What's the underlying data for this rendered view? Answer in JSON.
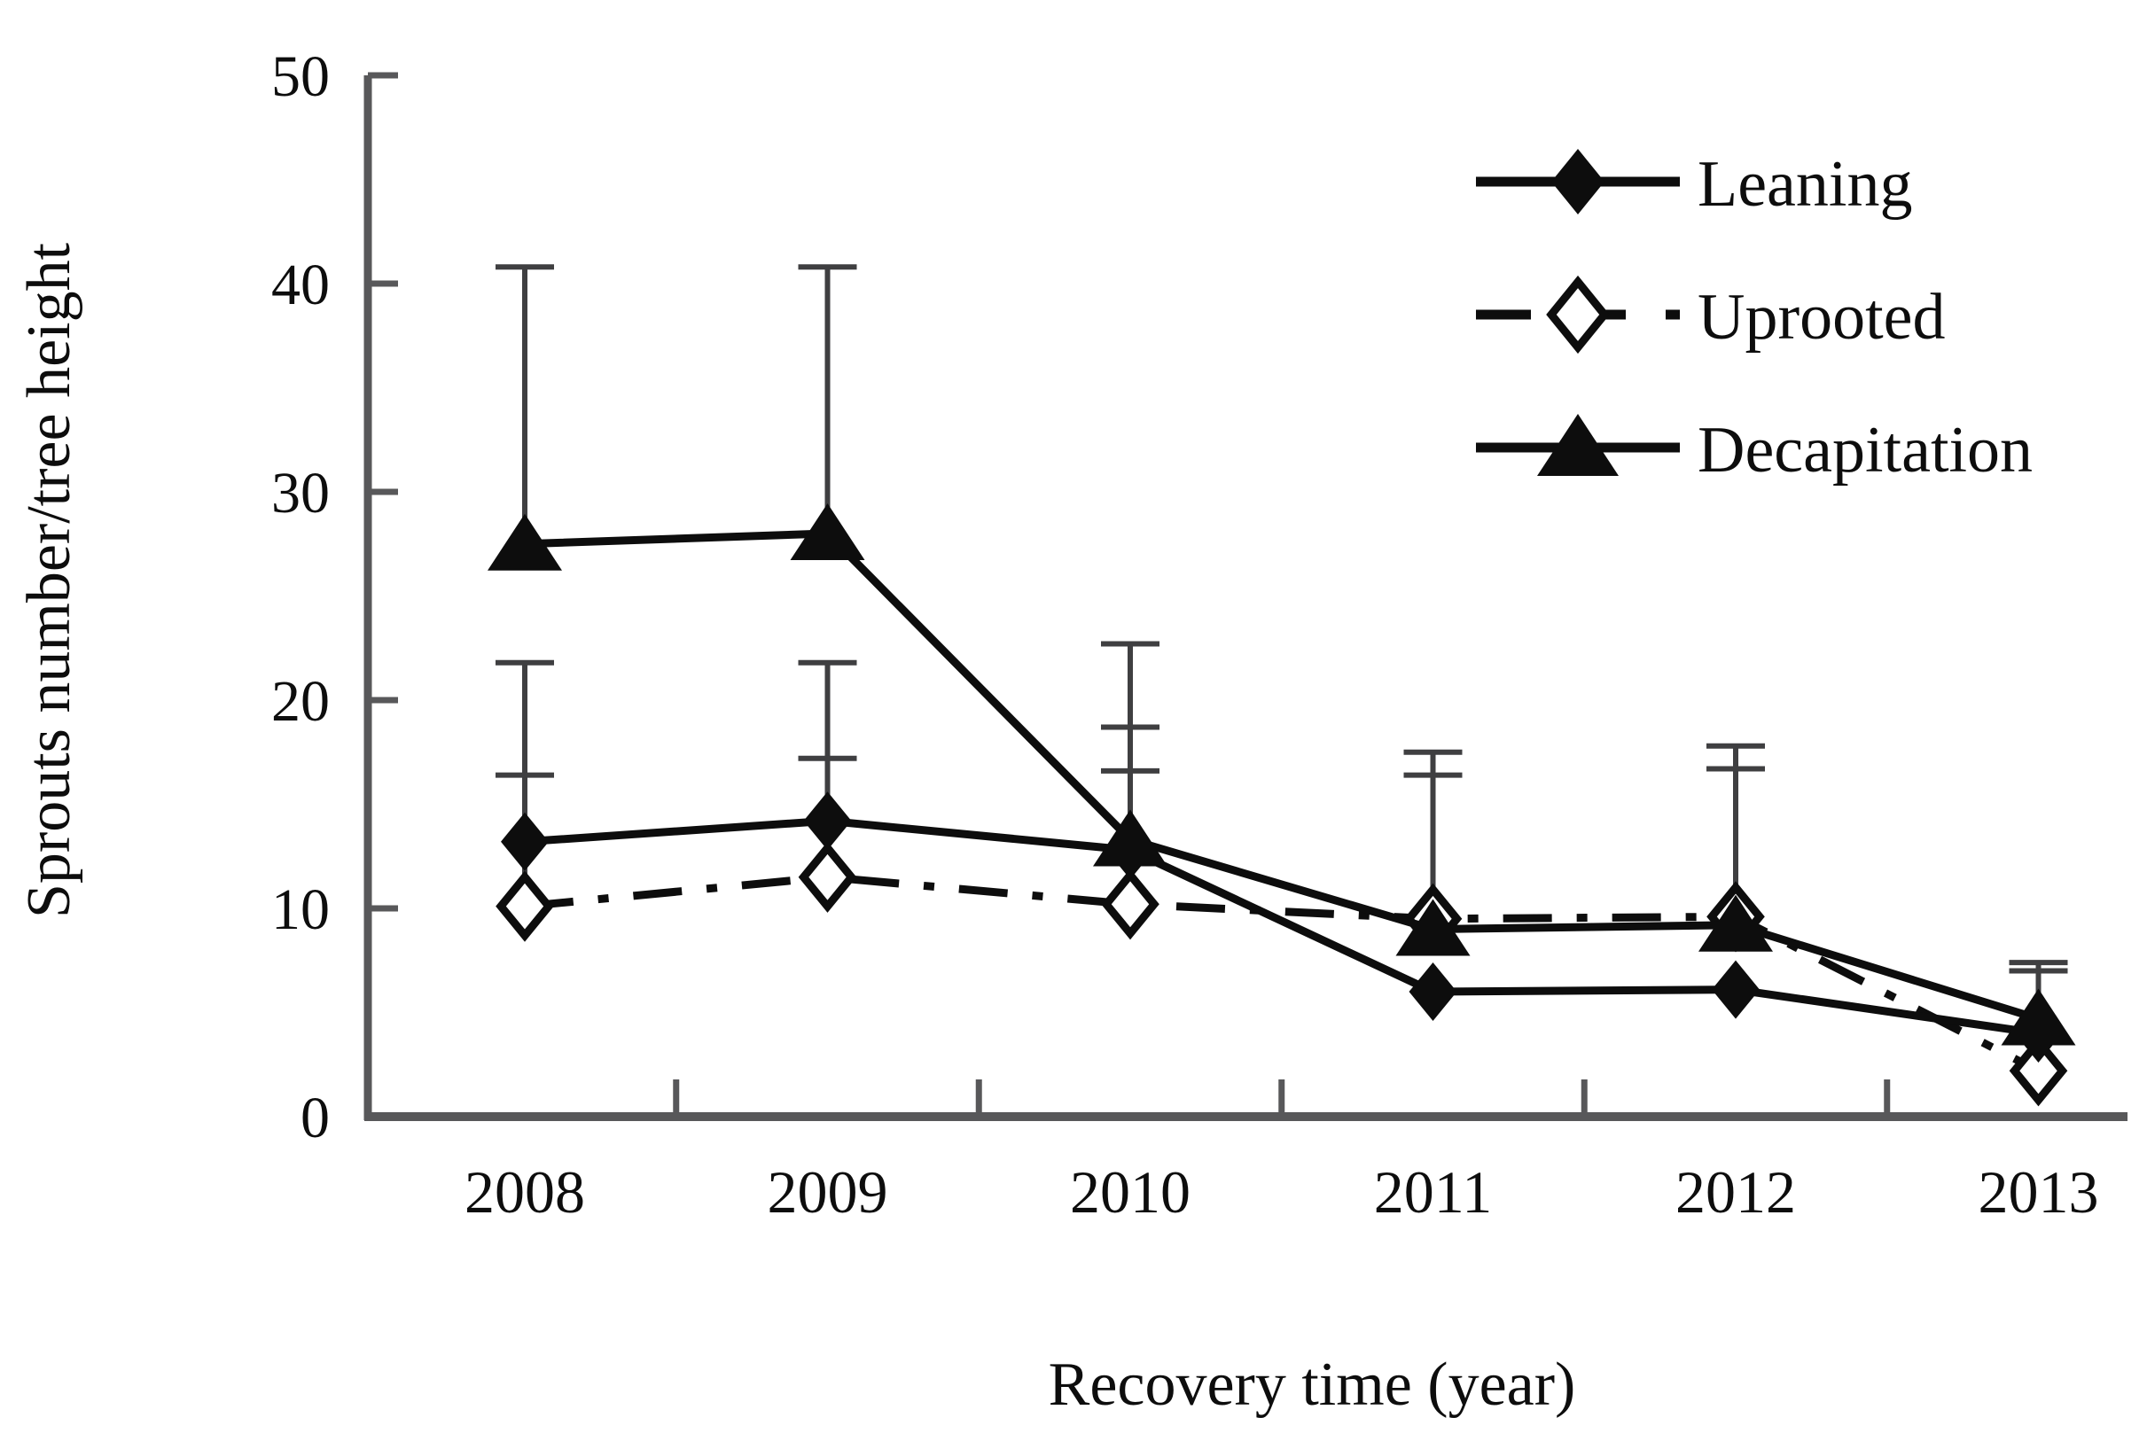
{
  "chart_data": {
    "type": "line",
    "title": "",
    "xlabel": "Recovery time (year)",
    "ylabel": "Sprouts number/tree height",
    "categories": [
      "2008",
      "2009",
      "2010",
      "2011",
      "2012",
      "2013"
    ],
    "ylim": [
      0,
      50
    ],
    "yticks": [
      0,
      10,
      20,
      30,
      40,
      50
    ],
    "grid": false,
    "legend_position": "top-right",
    "error_bars": "upper-only-with-caps",
    "series": [
      {
        "name": "Leaning",
        "marker": "filled-diamond",
        "line_style": "solid",
        "values": [
          13.2,
          14.2,
          12.8,
          6.0,
          6.1,
          4.0
        ],
        "error_top": [
          21.8,
          21.8,
          18.7,
          null,
          null,
          7.0
        ]
      },
      {
        "name": "Uprooted",
        "marker": "open-diamond",
        "line_style": "dash-dot",
        "values": [
          10.1,
          11.5,
          10.2,
          9.5,
          9.6,
          2.2
        ],
        "error_top": [
          16.4,
          17.2,
          16.6,
          16.4,
          16.7,
          null
        ]
      },
      {
        "name": "Decapitation",
        "marker": "filled-triangle",
        "line_style": "solid",
        "values": [
          27.5,
          28.0,
          13.3,
          9.0,
          9.2,
          4.7
        ],
        "error_top": [
          40.8,
          40.8,
          22.7,
          17.5,
          17.8,
          7.4
        ]
      }
    ],
    "colors": {
      "series": "#0d0d0d",
      "axis": "#58585a",
      "error_bar": "#3f3f41",
      "background": "#ffffff",
      "text": "#0d0d0d"
    }
  }
}
